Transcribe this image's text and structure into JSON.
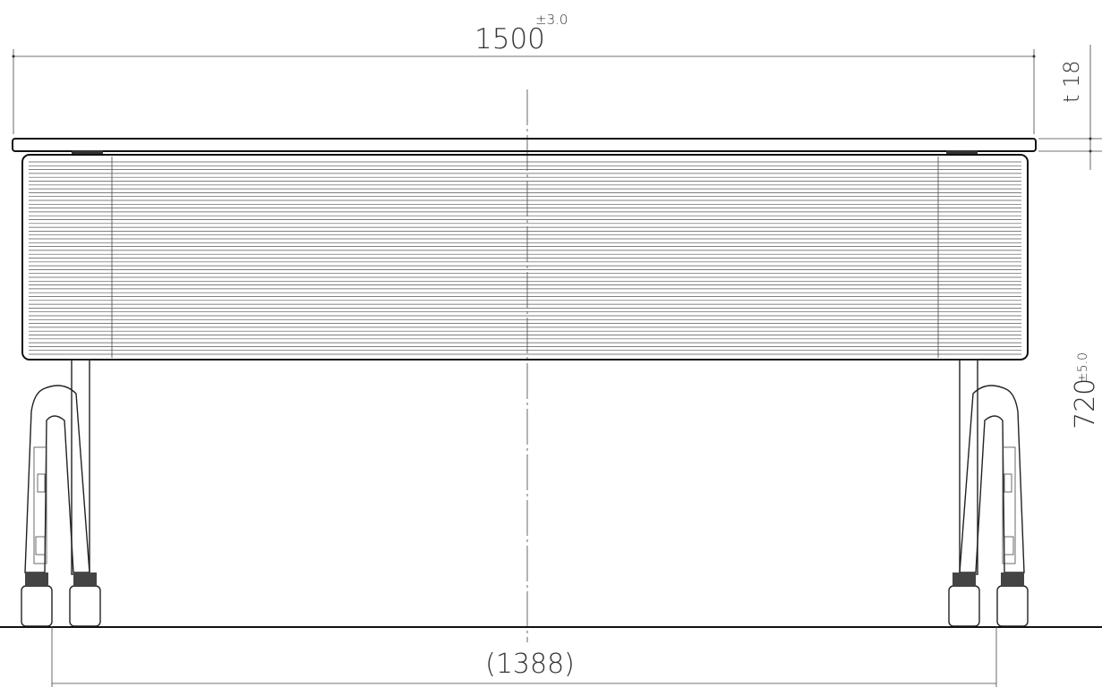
{
  "dimensions": {
    "width": {
      "value": "1500",
      "tolerance": "±3.0"
    },
    "thickness": {
      "label": "t 18"
    },
    "height": {
      "value": "720",
      "tolerance": "±5.0"
    },
    "leg_span": {
      "value": "(1388)"
    }
  }
}
